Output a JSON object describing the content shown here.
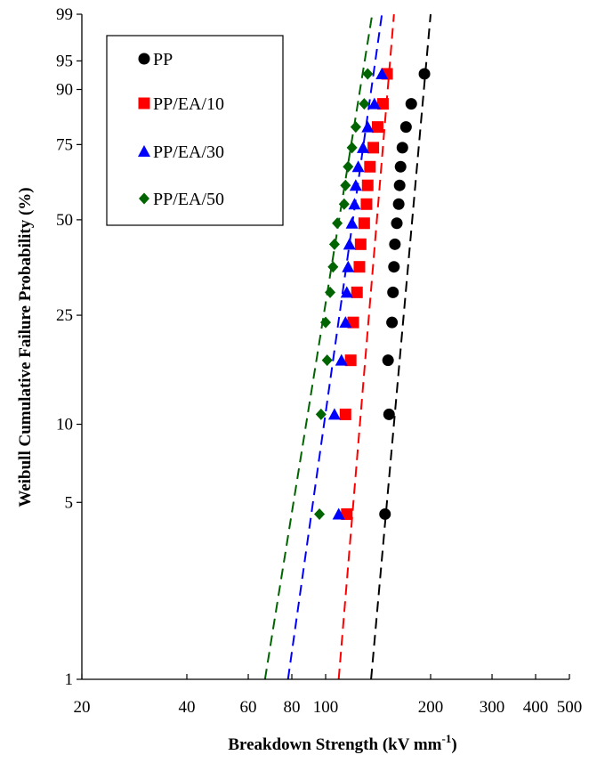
{
  "chart_data": {
    "type": "scatter",
    "title": "",
    "xlabel": "Breakdown Strength (kV mm",
    "xlabel_sup": "-1",
    "xlabel_close": ")",
    "ylabel": "Weibull Cumulative Failure Probability (%)",
    "x_scale": "log",
    "xlim": [
      20,
      500
    ],
    "x_ticks": [
      20,
      40,
      60,
      80,
      100,
      200,
      300,
      400,
      500
    ],
    "x_tick_labels": [
      "20",
      "40",
      "60",
      "80",
      "100",
      "200",
      "300",
      "400",
      "500"
    ],
    "y_scale": "weibull",
    "ylim": [
      1,
      99
    ],
    "y_ticks": [
      1,
      5,
      10,
      25,
      50,
      75,
      90,
      95,
      99
    ],
    "y_tick_labels": [
      "1",
      "5",
      "10",
      "25",
      "50",
      "75",
      "90",
      "95",
      "99"
    ],
    "grid": false,
    "legend_position": "top-left",
    "series": [
      {
        "name": "PP",
        "marker": "circle",
        "color": "#000000",
        "points": [
          [
            148,
            4.5
          ],
          [
            152,
            10.9
          ],
          [
            151,
            17.3
          ],
          [
            155,
            23.6
          ],
          [
            156,
            29.9
          ],
          [
            157,
            36.2
          ],
          [
            158,
            42.5
          ],
          [
            160,
            48.9
          ],
          [
            162,
            55.1
          ],
          [
            163,
            61.4
          ],
          [
            164,
            67.7
          ],
          [
            166,
            74.0
          ],
          [
            170,
            80.4
          ],
          [
            176,
            86.7
          ],
          [
            192,
            93.0
          ]
        ],
        "fit": [
          [
            135,
            1
          ],
          [
            200,
            99
          ]
        ]
      },
      {
        "name": "PP/EA/10",
        "marker": "square",
        "color": "#ff0000",
        "points": [
          [
            115,
            4.5
          ],
          [
            114,
            10.9
          ],
          [
            118,
            17.3
          ],
          [
            120,
            23.6
          ],
          [
            123,
            29.9
          ],
          [
            125,
            36.2
          ],
          [
            126,
            42.5
          ],
          [
            129,
            48.9
          ],
          [
            131,
            55.1
          ],
          [
            132,
            61.4
          ],
          [
            134,
            67.7
          ],
          [
            137,
            74.0
          ],
          [
            141,
            80.4
          ],
          [
            146,
            86.7
          ],
          [
            150,
            93.0
          ]
        ],
        "fit": [
          [
            109,
            1
          ],
          [
            157,
            99
          ]
        ]
      },
      {
        "name": "PP/EA/30",
        "marker": "triangle",
        "color": "#0000ff",
        "points": [
          [
            109,
            4.5
          ],
          [
            106,
            10.9
          ],
          [
            111,
            17.3
          ],
          [
            114,
            23.6
          ],
          [
            115,
            29.9
          ],
          [
            116,
            36.2
          ],
          [
            117,
            42.5
          ],
          [
            119,
            48.9
          ],
          [
            121,
            55.1
          ],
          [
            122,
            61.4
          ],
          [
            124,
            67.7
          ],
          [
            128,
            74.0
          ],
          [
            132,
            80.4
          ],
          [
            138,
            86.7
          ],
          [
            145,
            93.0
          ]
        ],
        "fit": [
          [
            78,
            1
          ],
          [
            145,
            99
          ]
        ]
      },
      {
        "name": "PP/EA/50",
        "marker": "diamond",
        "color": "#006400",
        "points": [
          [
            96,
            4.5
          ],
          [
            97,
            10.9
          ],
          [
            101,
            17.3
          ],
          [
            100,
            23.6
          ],
          [
            103,
            29.9
          ],
          [
            105,
            36.2
          ],
          [
            106,
            42.5
          ],
          [
            108,
            48.9
          ],
          [
            113,
            55.1
          ],
          [
            114,
            61.4
          ],
          [
            116,
            67.7
          ],
          [
            119,
            74.0
          ],
          [
            122,
            80.4
          ],
          [
            129,
            86.7
          ],
          [
            132,
            93.0
          ]
        ],
        "fit": [
          [
            67,
            1
          ],
          [
            136,
            99
          ]
        ]
      }
    ]
  }
}
